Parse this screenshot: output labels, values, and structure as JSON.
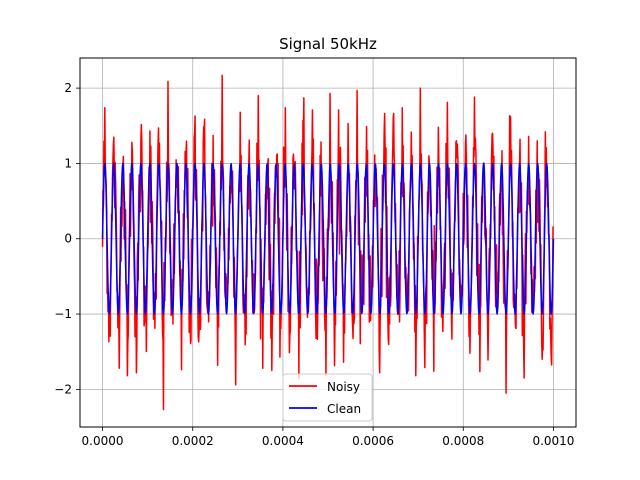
{
  "chart_data": {
    "type": "line",
    "title": "Signal 50kHz",
    "xlabel": "",
    "ylabel": "",
    "xlim": [
      -5e-05,
      0.00105
    ],
    "ylim": [
      -2.5,
      2.4
    ],
    "x_ticks": [
      0.0,
      0.0002,
      0.0004,
      0.0006,
      0.0008,
      0.001
    ],
    "x_tick_labels": [
      "0.0000",
      "0.0002",
      "0.0004",
      "0.0006",
      "0.0008",
      "0.0010"
    ],
    "y_ticks": [
      -2,
      -1,
      0,
      1,
      2
    ],
    "y_tick_labels": [
      "−2",
      "−1",
      "0",
      "1",
      "2"
    ],
    "grid": true,
    "legend_position": "lower center",
    "signal": {
      "frequency_hz": 50000,
      "t_start": 0.0,
      "t_end": 0.001,
      "samples": 1000
    },
    "series": [
      {
        "name": "Noisy",
        "color": "#ff0000",
        "description_values": "clean 50 kHz sine plus random noise",
        "peak_values": [
          1.74,
          1.35,
          -1.82,
          -1.78,
          1.33,
          1.43,
          -2.27,
          2.09,
          -1.74,
          1.63,
          1.39,
          -1.68,
          2.17,
          -1.94,
          1.68,
          1.31,
          1.9,
          -1.75,
          1.74,
          -1.86,
          1.45,
          1.71,
          -1.82,
          1.93,
          -1.64,
          1.53,
          1.97,
          -1.78,
          1.43,
          1.61,
          1.74,
          -1.82,
          2.0,
          -1.76,
          1.48,
          1.81,
          -1.52,
          1.88,
          -1.61,
          1.4,
          -2.05,
          1.62,
          -1.85,
          1.36,
          -1.6
        ]
      },
      {
        "name": "Clean",
        "color": "#0000ff",
        "amplitude": 1.0
      }
    ]
  }
}
